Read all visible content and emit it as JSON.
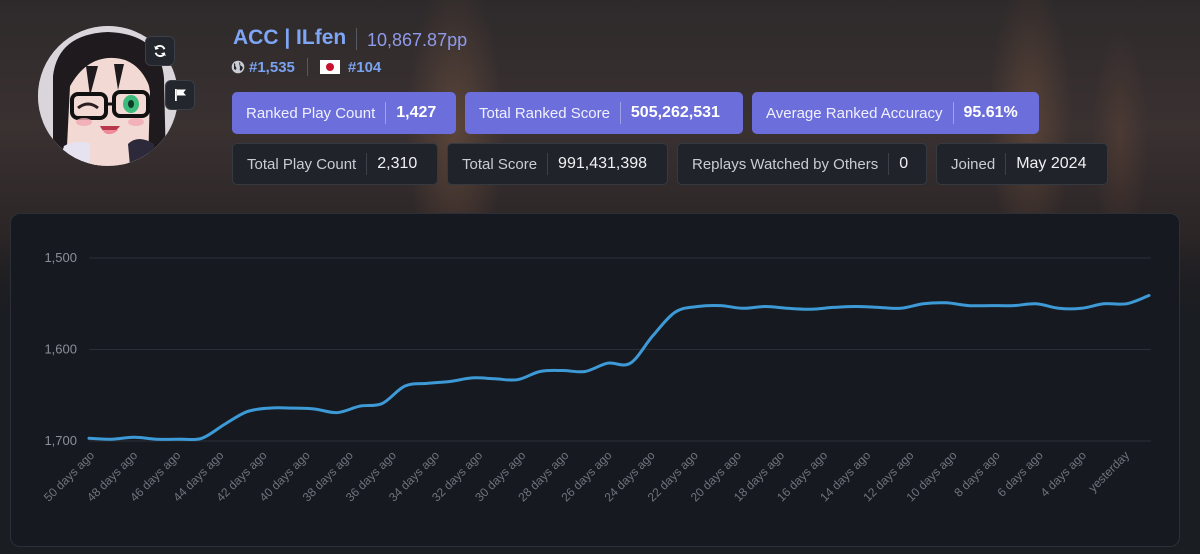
{
  "profile": {
    "username": "ACC | ILfen",
    "pp": "10,867.87pp",
    "global_rank": "#1,535",
    "country_rank": "#104"
  },
  "stats_primary": [
    {
      "label": "Ranked Play Count",
      "value": "1,427"
    },
    {
      "label": "Total Ranked Score",
      "value": "505,262,531"
    },
    {
      "label": "Average Ranked Accuracy",
      "value": "95.61%"
    }
  ],
  "stats_secondary": [
    {
      "label": "Total Play Count",
      "value": "2,310"
    },
    {
      "label": "Total Score",
      "value": "991,431,398"
    },
    {
      "label": "Replays Watched by Others",
      "value": "0"
    },
    {
      "label": "Joined",
      "value": "May 2024"
    }
  ],
  "icons": {
    "refresh": "refresh-icon",
    "flag": "flag-icon",
    "globe": "globe-icon",
    "country": "japan-flag-icon"
  },
  "colors": {
    "accent": "#6c6fdb",
    "link": "#7ea6f5",
    "line": "#3d9ad6"
  },
  "chart_data": {
    "type": "line",
    "title": "",
    "xlabel": "",
    "ylabel": "",
    "y_inverted": true,
    "ylim": [
      1500,
      1700
    ],
    "yticks": [
      1500,
      1600,
      1700
    ],
    "ytick_labels": [
      "1,500",
      "1,600",
      "1,700"
    ],
    "x_tick_labels": [
      "50 days ago",
      "48 days ago",
      "46 days ago",
      "44 days ago",
      "42 days ago",
      "40 days ago",
      "38 days ago",
      "36 days ago",
      "34 days ago",
      "32 days ago",
      "30 days ago",
      "28 days ago",
      "26 days ago",
      "24 days ago",
      "22 days ago",
      "20 days ago",
      "18 days ago",
      "16 days ago",
      "14 days ago",
      "12 days ago",
      "10 days ago",
      "8 days ago",
      "6 days ago",
      "4 days ago",
      "yesterday"
    ],
    "series": [
      {
        "name": "Global Rank",
        "values": [
          1697,
          1698,
          1696,
          1698,
          1698,
          1697,
          1682,
          1668,
          1664,
          1664,
          1665,
          1669,
          1662,
          1659,
          1640,
          1637,
          1635,
          1631,
          1632,
          1633,
          1624,
          1623,
          1624,
          1615,
          1615,
          1585,
          1559,
          1553,
          1552,
          1555,
          1553,
          1555,
          1556,
          1554,
          1553,
          1554,
          1555,
          1550,
          1549,
          1552,
          1552,
          1552,
          1550,
          1555,
          1555,
          1550,
          1550,
          1541
        ]
      }
    ]
  }
}
